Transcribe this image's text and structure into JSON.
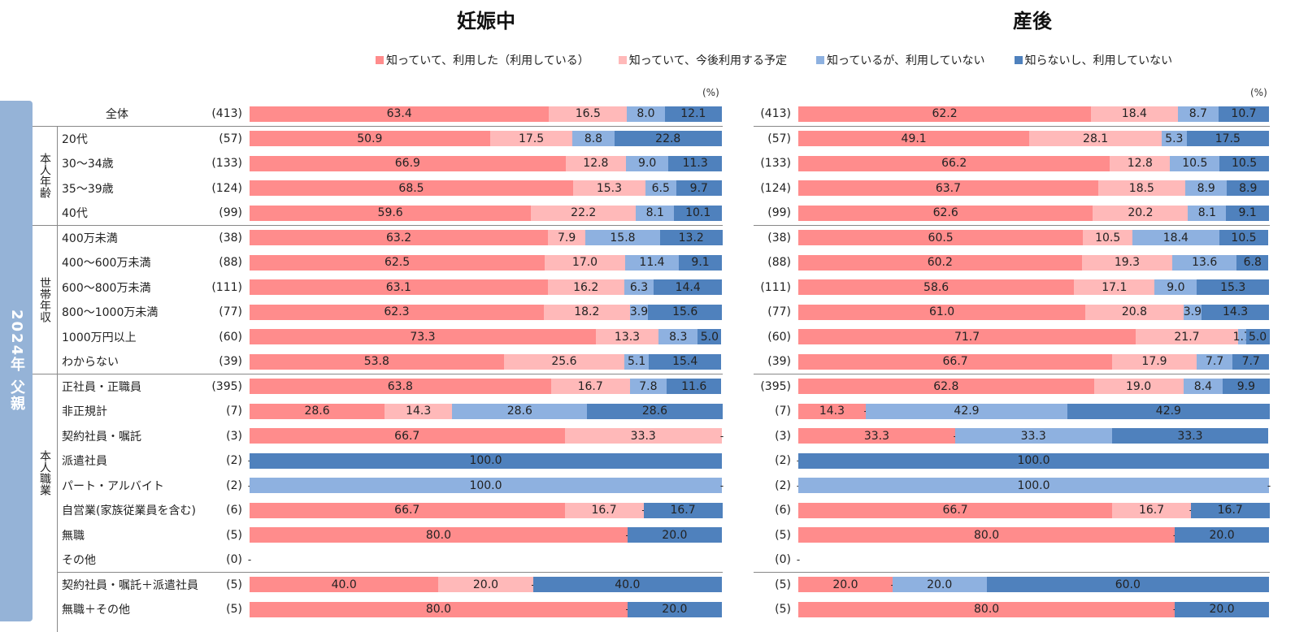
{
  "chart_data": {
    "type": "bar",
    "orientation": "horizontal-stacked-100",
    "unit_label": "(%)",
    "side_banner": "2024年 父親",
    "legend": [
      {
        "name": "知っていて、利用した（利用している）",
        "color": "#ff8c8c"
      },
      {
        "name": "知っていて、今後利用する予定",
        "color": "#ffb9b9"
      },
      {
        "name": "知っているが、利用していない",
        "color": "#8eb1e0"
      },
      {
        "name": "知らないし、利用していない",
        "color": "#4f81bd"
      }
    ],
    "groups": [
      {
        "name": "",
        "rows": [
          0
        ]
      },
      {
        "name": "本人年齢",
        "rows": [
          1,
          2,
          3,
          4
        ]
      },
      {
        "name": "世帯年収",
        "rows": [
          5,
          6,
          7,
          8,
          9,
          10
        ]
      },
      {
        "name": "本人職業",
        "rows": [
          11,
          12,
          13,
          14,
          15,
          16,
          17,
          18,
          19,
          20
        ]
      }
    ],
    "rows": [
      {
        "label": "全体",
        "n": "(413)"
      },
      {
        "label": "20代",
        "n": "(57)"
      },
      {
        "label": "30～34歳",
        "n": "(133)"
      },
      {
        "label": "35～39歳",
        "n": "(124)"
      },
      {
        "label": "40代",
        "n": "(99)"
      },
      {
        "label": "400万未満",
        "n": "(38)"
      },
      {
        "label": "400～600万未満",
        "n": "(88)"
      },
      {
        "label": "600～800万未満",
        "n": "(111)"
      },
      {
        "label": "800～1000万未満",
        "n": "(77)"
      },
      {
        "label": "1000万円以上",
        "n": "(60)"
      },
      {
        "label": "わからない",
        "n": "(39)"
      },
      {
        "label": "正社員・正職員",
        "n": "(395)"
      },
      {
        "label": "非正規計",
        "n": "(7)"
      },
      {
        "label": "契約社員・嘱託",
        "n": "(3)"
      },
      {
        "label": "派遣社員",
        "n": "(2)"
      },
      {
        "label": "パート・アルバイト",
        "n": "(2)"
      },
      {
        "label": "自営業(家族従業員を含む)",
        "n": "(6)"
      },
      {
        "label": "無職",
        "n": "(5)"
      },
      {
        "label": "その他",
        "n": "(0)"
      },
      {
        "label": "契約社員・嘱託＋派遣社員",
        "n": "(5)"
      },
      {
        "label": "無職＋その他",
        "n": "(5)"
      }
    ],
    "panels": [
      {
        "title": "妊娠中",
        "values": [
          [
            63.4,
            16.5,
            8.0,
            12.1
          ],
          [
            50.9,
            17.5,
            8.8,
            22.8
          ],
          [
            66.9,
            12.8,
            9.0,
            11.3
          ],
          [
            68.5,
            15.3,
            6.5,
            9.7
          ],
          [
            59.6,
            22.2,
            8.1,
            10.1
          ],
          [
            63.2,
            7.9,
            15.8,
            13.2
          ],
          [
            62.5,
            17.0,
            11.4,
            9.1
          ],
          [
            63.1,
            16.2,
            6.3,
            14.4
          ],
          [
            62.3,
            18.2,
            3.9,
            15.6
          ],
          [
            73.3,
            13.3,
            8.3,
            5.0
          ],
          [
            53.8,
            25.6,
            5.1,
            15.4
          ],
          [
            63.8,
            16.7,
            7.8,
            11.6
          ],
          [
            28.6,
            14.3,
            28.6,
            28.6
          ],
          [
            66.7,
            33.3,
            0,
            0
          ],
          [
            0,
            0,
            0,
            100.0
          ],
          [
            0,
            0,
            100.0,
            0
          ],
          [
            66.7,
            16.7,
            0,
            16.7
          ],
          [
            80.0,
            0,
            0,
            20.0
          ],
          [
            0,
            0,
            0,
            0
          ],
          [
            40.0,
            20.0,
            0,
            40.0
          ],
          [
            80.0,
            0,
            0,
            20.0
          ]
        ]
      },
      {
        "title": "産後",
        "values": [
          [
            62.2,
            18.4,
            8.7,
            10.7
          ],
          [
            49.1,
            28.1,
            5.3,
            17.5
          ],
          [
            66.2,
            12.8,
            10.5,
            10.5
          ],
          [
            63.7,
            18.5,
            8.9,
            8.9
          ],
          [
            62.6,
            20.2,
            8.1,
            9.1
          ],
          [
            60.5,
            10.5,
            18.4,
            10.5
          ],
          [
            60.2,
            19.3,
            13.6,
            6.8
          ],
          [
            58.6,
            17.1,
            9.0,
            15.3
          ],
          [
            61.0,
            20.8,
            3.9,
            14.3
          ],
          [
            71.7,
            21.7,
            1.7,
            5.0
          ],
          [
            66.7,
            17.9,
            7.7,
            7.7
          ],
          [
            62.8,
            19.0,
            8.4,
            9.9
          ],
          [
            14.3,
            0,
            42.9,
            42.9
          ],
          [
            33.3,
            0,
            33.3,
            33.3
          ],
          [
            0,
            0,
            0,
            100.0
          ],
          [
            0,
            0,
            100.0,
            0
          ],
          [
            66.7,
            16.7,
            0,
            16.7
          ],
          [
            80.0,
            0,
            0,
            20.0
          ],
          [
            0,
            0,
            0,
            0
          ],
          [
            20.0,
            0,
            20.0,
            60.0
          ],
          [
            80.0,
            0,
            0,
            20.0
          ]
        ]
      }
    ],
    "zero_marker": "-",
    "xlim": [
      0,
      100
    ]
  }
}
